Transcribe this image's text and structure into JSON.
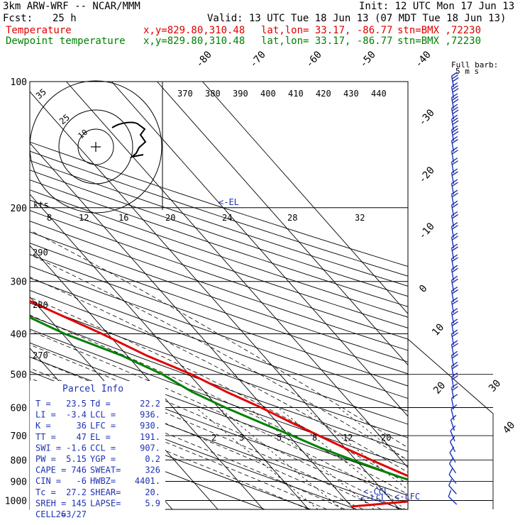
{
  "header": {
    "model": "3km ARW-WRF -- NCAR/MMM",
    "init": "Init: 12 UTC Mon 17 Jun 13",
    "fcst_label": "Fcst:",
    "fcst_value": "25 h",
    "valid": "Valid: 13 UTC Tue 18 Jun 13 (07 MDT Tue 18 Jun 13)",
    "temp_label": "Temperature",
    "dew_label": "Dewpoint temperature",
    "xy": "x,y=829.80,310.48",
    "latlon": "lat,lon= 33.17, -86.77",
    "stn": "stn=BMX ,72230"
  },
  "colors": {
    "temperature": "#e00000",
    "dewpoint": "#008000",
    "barb": "#1e32b4",
    "parcel": "#1e32b4"
  },
  "chart_data": {
    "type": "line",
    "title": "Skew-T log-P sounding",
    "y_axis": {
      "label": "Pressure (hPa)",
      "ticks": [
        100,
        200,
        300,
        400,
        500,
        600,
        700,
        800,
        900,
        1000
      ],
      "scale": "log"
    },
    "isotherm_labels": [
      "-80",
      "-70",
      "-60",
      "-50",
      "-40",
      "-30",
      "-20",
      "-10",
      "0",
      "10",
      "20",
      "30",
      "40"
    ],
    "theta_e_labels": [
      "370",
      "380",
      "390",
      "400",
      "410",
      "420",
      "430",
      "440"
    ],
    "theta_labels": [
      "290",
      "280",
      "270"
    ],
    "mixing_ratio_labels": [
      "2",
      "3",
      "5",
      "8",
      "12",
      "20"
    ],
    "series": [
      {
        "name": "Temperature",
        "pressure": [
          985,
          960,
          935,
          910,
          880,
          850,
          800,
          750,
          700,
          650,
          600,
          550,
          500,
          450,
          400,
          350,
          300,
          250,
          220,
          200,
          185,
          165,
          145,
          125,
          110,
          100
        ],
        "values": [
          23.5,
          21.8,
          21.4,
          20.8,
          18.8,
          16.8,
          13.4,
          10.0,
          6.6,
          3.0,
          -0.6,
          -5.2,
          -9.5,
          -15.8,
          -21.3,
          -28.4,
          -36.4,
          -45.2,
          -51.3,
          -54.8,
          -56.7,
          -59.1,
          -62.9,
          -66.1,
          -68.6,
          -70.2
        ]
      },
      {
        "name": "Dewpoint temperature",
        "pressure": [
          985,
          960,
          935,
          910,
          880,
          850,
          800,
          750,
          700,
          650,
          600,
          550,
          500,
          450,
          400,
          350,
          300,
          250,
          220,
          200,
          185,
          165,
          145,
          125,
          110,
          100
        ],
        "values": [
          22.2,
          20.9,
          20.6,
          19.8,
          16.5,
          13.8,
          9.3,
          4.7,
          0.7,
          -3.8,
          -8.5,
          -12.8,
          -15.9,
          -21.3,
          -29.5,
          -36.2,
          -42.5,
          -50.3,
          -56.6,
          -61.6,
          -66.8,
          -71.8,
          -75.1,
          -76.6,
          -77.0,
          -77.6
        ]
      }
    ],
    "levels": {
      "EL": {
        "label": "<-EL",
        "pressure": 191
      },
      "LCL": {
        "label": "<-LCL",
        "pressure": 936
      },
      "CCL": {
        "label": "<-CCL",
        "pressure": 907
      },
      "LFC": {
        "label": "<-LFC",
        "pressure": 930
      }
    },
    "hodograph": {
      "units_label": "kts",
      "ring_labels": [
        "10",
        "25",
        "35"
      ],
      "speed_ticks": [
        "8",
        "12",
        "16",
        "20",
        "24",
        "28",
        "32"
      ]
    },
    "wind_barbs": {
      "legend_title": "Full barb:",
      "legend_value": "5 m s",
      "count": 40,
      "pressure_range": [
        100,
        1000
      ]
    }
  },
  "parcel_info": {
    "title": "Parcel Info",
    "rows": [
      [
        "T  =",
        "23.5",
        "Td =",
        "22.2"
      ],
      [
        "LI =",
        "-3.4",
        "LCL =",
        "936."
      ],
      [
        "K  =",
        "36",
        "LFC =",
        "930."
      ],
      [
        "TT =",
        "47",
        "EL  =",
        "191."
      ],
      [
        "SWI =",
        "-1.6",
        "CCL =",
        "907."
      ],
      [
        "PW =",
        "5.15",
        "YGP =",
        "0.2"
      ],
      [
        "CAPE =",
        "746",
        "SWEAT=",
        "326"
      ],
      [
        "CIN =",
        "-6",
        "HWBZ=",
        "4401."
      ],
      [
        "Tc =",
        "27.2",
        "SHEAR=",
        "20."
      ],
      [
        "SREH =",
        "145",
        "LAPSE=",
        "5.9"
      ],
      [
        "CELL =",
        "263/27",
        "",
        ""
      ]
    ]
  }
}
